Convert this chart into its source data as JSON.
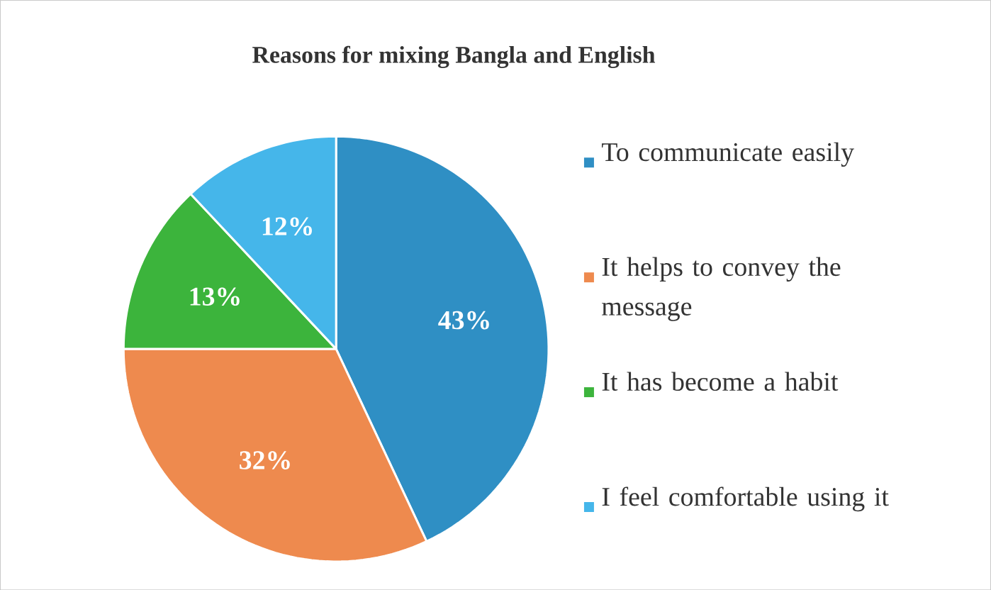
{
  "chart_data": {
    "type": "pie",
    "title": "Reasons for mixing  Bangla and English",
    "categories": [
      "To communicate easily",
      "It helps to convey the message",
      "It has become a habit",
      "I feel comfortable using it"
    ],
    "values": [
      43,
      32,
      13,
      12
    ],
    "value_labels": [
      "43%",
      "32%",
      "13%",
      "12%"
    ],
    "colors": [
      "#2f8fc4",
      "#ee8a4e",
      "#3cb43c",
      "#45b6ea"
    ],
    "legend": "right"
  }
}
